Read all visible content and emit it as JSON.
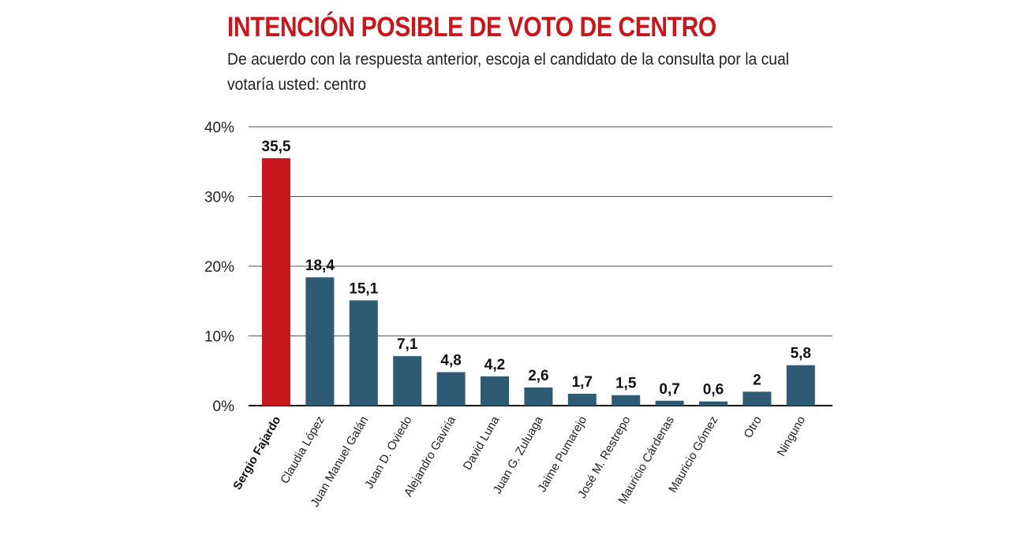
{
  "header": {
    "title": "INTENCIÓN POSIBLE DE VOTO DE CENTRO",
    "subtitle": "De acuerdo con la respuesta anterior, escoja el candidato de la consulta por la cual votaría usted: centro"
  },
  "colors": {
    "title": "#c8161d",
    "highlight_bar": "#c8161d",
    "bar": "#2e5a74",
    "grid": "#555555"
  },
  "chart_data": {
    "type": "bar",
    "title": "INTENCIÓN POSIBLE DE VOTO DE CENTRO",
    "subtitle": "De acuerdo con la respuesta anterior, escoja el candidato de la consulta por la cual votaría usted: centro",
    "xlabel": "",
    "ylabel": "",
    "ylim": [
      0,
      40
    ],
    "yticks": [
      0,
      10,
      20,
      30,
      40
    ],
    "ytick_labels": [
      "0%",
      "10%",
      "20%",
      "30%",
      "40%"
    ],
    "grid": true,
    "categories": [
      "Sergio Fajardo",
      "Claudia López",
      "Juan Manuel Galán",
      "Juan D. Oviedo",
      "Alejandro Gaviria",
      "David Luna",
      "Juan G. Zuluaga",
      "Jaime Pumarejo",
      "José M. Restrepo",
      "Mauricio Cárdenas",
      "Mauricio Gómez",
      "Otro",
      "Ninguno"
    ],
    "values": [
      35.5,
      18.4,
      15.1,
      7.1,
      4.8,
      4.2,
      2.6,
      1.7,
      1.5,
      0.7,
      0.6,
      2,
      5.8
    ],
    "value_labels": [
      "35,5",
      "18,4",
      "15,1",
      "7,1",
      "4,8",
      "4,2",
      "2,6",
      "1,7",
      "1,5",
      "0,7",
      "0,6",
      "2",
      "5,8"
    ],
    "highlighted_category": "Sergio Fajardo"
  }
}
